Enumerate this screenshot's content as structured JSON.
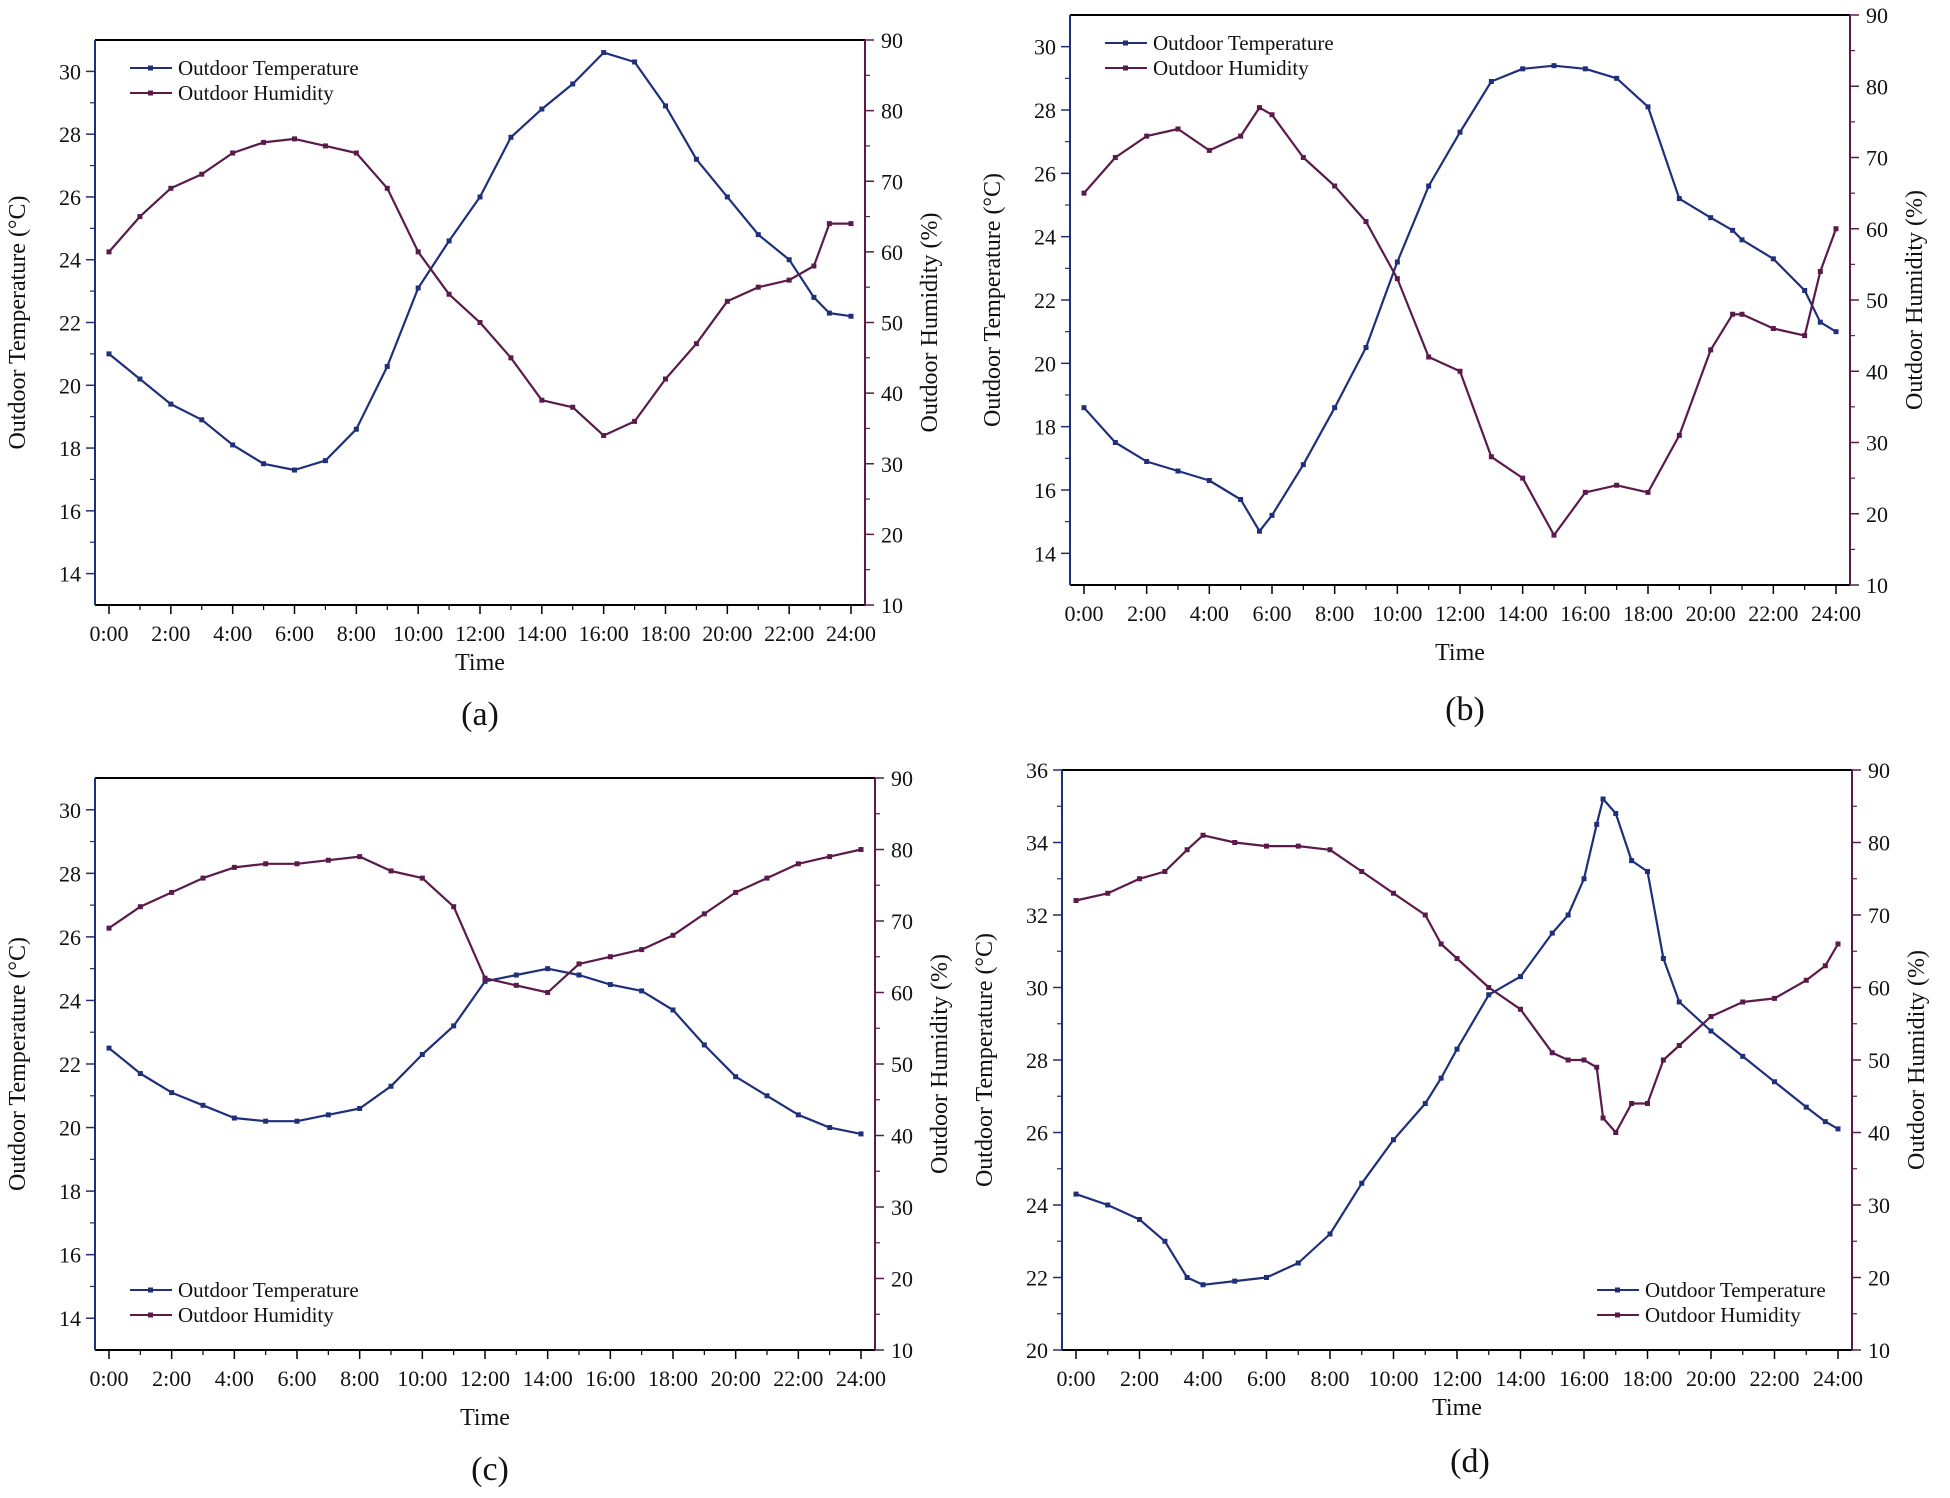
{
  "figure": {
    "colors": {
      "temperature": "#1F2F7A",
      "humidity": "#5A1A4A",
      "axis": "#000000",
      "right_axis": "#5A1A4A"
    }
  },
  "chart_data": [
    {
      "type": "line",
      "panel_label": "(a)",
      "xlabel": "Time",
      "ylabel": "Outdoor Temperature (°C)",
      "y2label": "Outdoor Humidity (%)",
      "xlim": [
        0,
        24
      ],
      "ylim": [
        13,
        31
      ],
      "y2lim": [
        10,
        90
      ],
      "x_ticks": [
        "0:00",
        "2:00",
        "4:00",
        "6:00",
        "8:00",
        "10:00",
        "12:00",
        "14:00",
        "16:00",
        "18:00",
        "20:00",
        "22:00",
        "24:00"
      ],
      "y_ticks": [
        14,
        16,
        18,
        20,
        22,
        24,
        26,
        28,
        30
      ],
      "y2_ticks": [
        10,
        20,
        30,
        40,
        50,
        60,
        70,
        80,
        90
      ],
      "legend": [
        "Outdoor Temperature",
        "Outdoor Humidity"
      ],
      "legend_position": "top-left",
      "x": [
        0,
        1,
        2,
        3,
        4,
        5,
        6,
        7,
        8,
        9,
        10,
        11,
        12,
        13,
        14,
        15,
        16,
        17,
        18,
        19,
        20,
        21,
        22,
        22.8,
        23.3,
        24
      ],
      "series": [
        {
          "name": "Outdoor Temperature",
          "axis": "left",
          "values": [
            21.0,
            20.2,
            19.4,
            18.9,
            18.1,
            17.5,
            17.3,
            17.6,
            18.6,
            20.6,
            23.1,
            24.6,
            26.0,
            27.9,
            28.8,
            29.6,
            30.6,
            30.3,
            28.9,
            27.2,
            26.0,
            24.8,
            24.0,
            22.8,
            22.3,
            22.2
          ]
        },
        {
          "name": "Outdoor Humidity",
          "axis": "right",
          "values": [
            60,
            65,
            69,
            71,
            74,
            75.5,
            76,
            75,
            74,
            69,
            60,
            54,
            50,
            45,
            39,
            38,
            34,
            36,
            42,
            47,
            53,
            55,
            56,
            58,
            64,
            64
          ]
        }
      ]
    },
    {
      "type": "line",
      "panel_label": "(b)",
      "xlabel": "Time",
      "ylabel": "Outdoor Temperature (°C)",
      "y2label": "Outdoor Humidity (%)",
      "xlim": [
        0,
        24
      ],
      "ylim": [
        13,
        31
      ],
      "y2lim": [
        10,
        90
      ],
      "x_ticks": [
        "0:00",
        "2:00",
        "4:00",
        "6:00",
        "8:00",
        "10:00",
        "12:00",
        "14:00",
        "16:00",
        "18:00",
        "20:00",
        "22:00",
        "24:00"
      ],
      "y_ticks": [
        14,
        16,
        18,
        20,
        22,
        24,
        26,
        28,
        30
      ],
      "y2_ticks": [
        10,
        20,
        30,
        40,
        50,
        60,
        70,
        80,
        90
      ],
      "legend": [
        "Outdoor Temperature",
        "Outdoor Humidity"
      ],
      "legend_position": "top-left",
      "x": [
        0,
        1,
        2,
        3,
        4,
        5,
        5.6,
        6,
        7,
        8,
        9,
        10,
        11,
        12,
        13,
        14,
        15,
        16,
        17,
        18,
        19,
        20,
        20.7,
        21,
        22,
        23,
        23.5,
        24
      ],
      "series": [
        {
          "name": "Outdoor Temperature",
          "axis": "left",
          "values": [
            18.6,
            17.5,
            16.9,
            16.6,
            16.3,
            15.7,
            14.7,
            15.2,
            16.8,
            18.6,
            20.5,
            23.2,
            25.6,
            27.3,
            28.9,
            29.3,
            29.4,
            29.3,
            29.0,
            28.1,
            25.2,
            24.6,
            24.2,
            23.9,
            23.3,
            22.3,
            21.3,
            21.0
          ]
        },
        {
          "name": "Outdoor Humidity",
          "axis": "right",
          "values": [
            65,
            70,
            73,
            74,
            71,
            73,
            77,
            76,
            70,
            66,
            61,
            53,
            42,
            40,
            28,
            25,
            17,
            23,
            24,
            23,
            31,
            43,
            48,
            48,
            46,
            45,
            54,
            60
          ]
        }
      ]
    },
    {
      "type": "line",
      "panel_label": "(c)",
      "xlabel": "Time",
      "ylabel": "Outdoor Temperature (°C)",
      "y2label": "Outdoor Humidity (%)",
      "xlim": [
        0,
        24
      ],
      "ylim": [
        13,
        31
      ],
      "y2lim": [
        10,
        90
      ],
      "x_ticks": [
        "0:00",
        "2:00",
        "4:00",
        "6:00",
        "8:00",
        "10:00",
        "12:00",
        "14:00",
        "16:00",
        "18:00",
        "20:00",
        "22:00",
        "24:00"
      ],
      "y_ticks": [
        14,
        16,
        18,
        20,
        22,
        24,
        26,
        28,
        30
      ],
      "y2_ticks": [
        10,
        20,
        30,
        40,
        50,
        60,
        70,
        80,
        90
      ],
      "legend": [
        "Outdoor Temperature",
        "Outdoor Humidity"
      ],
      "legend_position": "bottom-left",
      "x": [
        0,
        1,
        2,
        3,
        4,
        5,
        6,
        7,
        8,
        9,
        10,
        11,
        12,
        13,
        14,
        15,
        16,
        17,
        18,
        19,
        20,
        21,
        22,
        23,
        24
      ],
      "series": [
        {
          "name": "Outdoor Temperature",
          "axis": "left",
          "values": [
            22.5,
            21.7,
            21.1,
            20.7,
            20.3,
            20.2,
            20.2,
            20.4,
            20.6,
            21.3,
            22.3,
            23.2,
            24.6,
            24.8,
            25.0,
            24.8,
            24.5,
            24.3,
            23.7,
            22.6,
            21.6,
            21.0,
            20.4,
            20.0,
            19.8
          ]
        },
        {
          "name": "Outdoor Humidity",
          "axis": "right",
          "values": [
            69,
            72,
            74,
            76,
            77.5,
            78,
            78,
            78.5,
            79,
            77,
            76,
            72,
            62,
            61,
            60,
            64,
            65,
            66,
            68,
            71,
            74,
            76,
            78,
            79,
            80
          ]
        }
      ]
    },
    {
      "type": "line",
      "panel_label": "(d)",
      "xlabel": "Time",
      "ylabel": "Outdoor Temperature (°C)",
      "y2label": "Outdoor Humidity (%)",
      "xlim": [
        0,
        24
      ],
      "ylim": [
        20,
        36
      ],
      "y2lim": [
        10,
        90
      ],
      "x_ticks": [
        "0:00",
        "2:00",
        "4:00",
        "6:00",
        "8:00",
        "10:00",
        "12:00",
        "14:00",
        "16:00",
        "18:00",
        "20:00",
        "22:00",
        "24:00"
      ],
      "y_ticks": [
        20,
        22,
        24,
        26,
        28,
        30,
        32,
        34,
        36
      ],
      "y2_ticks": [
        10,
        20,
        30,
        40,
        50,
        60,
        70,
        80,
        90
      ],
      "legend": [
        "Outdoor Temperature",
        "Outdoor Humidity"
      ],
      "legend_position": "bottom-right",
      "x": [
        0,
        1,
        2,
        2.8,
        3.5,
        4,
        5,
        6,
        7,
        8,
        9,
        10,
        11,
        11.5,
        12,
        13,
        14,
        15,
        15.5,
        16,
        16.4,
        16.6,
        17,
        17.5,
        18,
        18.5,
        19,
        20,
        21,
        22,
        23,
        23.6,
        24
      ],
      "series": [
        {
          "name": "Outdoor Temperature",
          "axis": "left",
          "values": [
            24.3,
            24.0,
            23.6,
            23.0,
            22.0,
            21.8,
            21.9,
            22.0,
            22.4,
            23.2,
            24.6,
            25.8,
            26.8,
            27.5,
            28.3,
            29.8,
            30.3,
            31.5,
            32.0,
            33.0,
            34.5,
            35.2,
            34.8,
            33.5,
            33.2,
            30.8,
            29.6,
            28.8,
            28.1,
            27.4,
            26.7,
            26.3,
            26.1
          ]
        },
        {
          "name": "Outdoor Humidity",
          "axis": "right",
          "values": [
            72,
            73,
            75,
            76,
            79,
            81,
            80,
            79.5,
            79.5,
            79,
            76,
            73,
            70,
            66,
            64,
            60,
            57,
            51,
            50,
            50,
            49,
            42,
            40,
            44,
            44,
            50,
            52,
            56,
            58,
            58.5,
            61,
            63,
            66
          ]
        }
      ]
    }
  ]
}
